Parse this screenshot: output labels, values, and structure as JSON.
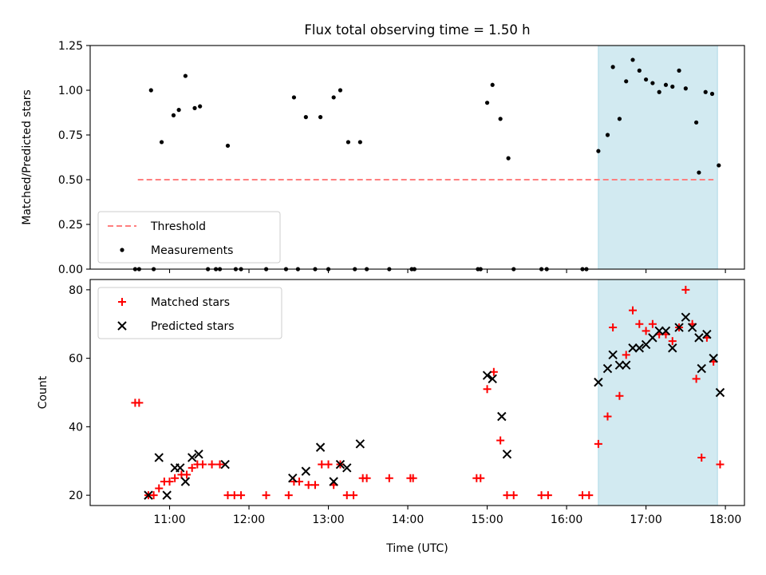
{
  "chart_data": {
    "title": "Flux total observing time = 1.50 h",
    "xlabel": "Time (UTC)",
    "x_ticks": [
      "11:00",
      "12:00",
      "13:00",
      "14:00",
      "15:00",
      "16:00",
      "17:00",
      "18:00"
    ],
    "highlight_span": [
      "16:24",
      "17:54"
    ],
    "colors": {
      "threshold": "#ff7f7f",
      "matched": "#ff0000",
      "predicted": "#000000",
      "measurement": "#000000",
      "span": "#add8e6"
    },
    "panels": [
      {
        "type": "scatter",
        "ylabel": "Matched/Predicted stars",
        "ylim": [
          0,
          1.25
        ],
        "y_ticks": [
          "0.00",
          "0.25",
          "0.50",
          "0.75",
          "1.00",
          "1.25"
        ],
        "legend_position": "lower-left",
        "threshold": {
          "name": "Threshold",
          "value": 0.5,
          "x_range": [
            "10:36",
            "17:51"
          ]
        },
        "series": [
          {
            "name": "Measurements",
            "points": [
              [
                "10:34",
                0
              ],
              [
                "10:37",
                0
              ],
              [
                "10:46",
                1.0
              ],
              [
                "10:48",
                0
              ],
              [
                "10:54",
                0.71
              ],
              [
                "11:03",
                0.86
              ],
              [
                "11:07",
                0.89
              ],
              [
                "11:12",
                1.08
              ],
              [
                "11:19",
                0.9
              ],
              [
                "11:23",
                0.91
              ],
              [
                "11:29",
                0
              ],
              [
                "11:35",
                0
              ],
              [
                "11:38",
                0
              ],
              [
                "11:44",
                0.69
              ],
              [
                "11:50",
                0
              ],
              [
                "11:54",
                0
              ],
              [
                "12:13",
                0
              ],
              [
                "12:28",
                0
              ],
              [
                "12:34",
                0.96
              ],
              [
                "12:37",
                0
              ],
              [
                "12:43",
                0.85
              ],
              [
                "12:50",
                0
              ],
              [
                "12:54",
                0.85
              ],
              [
                "13:00",
                0
              ],
              [
                "13:04",
                0.96
              ],
              [
                "13:09",
                1.0
              ],
              [
                "13:15",
                0.71
              ],
              [
                "13:20",
                0
              ],
              [
                "13:24",
                0.71
              ],
              [
                "13:29",
                0
              ],
              [
                "13:46",
                0
              ],
              [
                "14:03",
                0
              ],
              [
                "14:05",
                0
              ],
              [
                "14:53",
                0
              ],
              [
                "14:55",
                0
              ],
              [
                "15:00",
                0.93
              ],
              [
                "15:04",
                1.03
              ],
              [
                "15:10",
                0.84
              ],
              [
                "15:16",
                0.62
              ],
              [
                "15:20",
                0
              ],
              [
                "15:41",
                0
              ],
              [
                "15:45",
                0
              ],
              [
                "16:12",
                0
              ],
              [
                "16:15",
                0
              ],
              [
                "16:24",
                0.66
              ],
              [
                "16:31",
                0.75
              ],
              [
                "16:35",
                1.13
              ],
              [
                "16:40",
                0.84
              ],
              [
                "16:45",
                1.05
              ],
              [
                "16:50",
                1.17
              ],
              [
                "16:55",
                1.11
              ],
              [
                "17:00",
                1.06
              ],
              [
                "17:05",
                1.04
              ],
              [
                "17:10",
                0.99
              ],
              [
                "17:15",
                1.03
              ],
              [
                "17:20",
                1.02
              ],
              [
                "17:25",
                1.11
              ],
              [
                "17:30",
                1.01
              ],
              [
                "17:38",
                0.82
              ],
              [
                "17:40",
                0.54
              ],
              [
                "17:45",
                0.99
              ],
              [
                "17:50",
                0.98
              ],
              [
                "17:55",
                0.58
              ]
            ]
          }
        ]
      },
      {
        "type": "scatter",
        "ylabel": "Count",
        "ylim": [
          17,
          83
        ],
        "y_ticks": [
          "20",
          "40",
          "60",
          "80"
        ],
        "legend_position": "upper-left",
        "series": [
          {
            "name": "Matched stars",
            "marker": "plus",
            "points": [
              [
                "10:34",
                47
              ],
              [
                "10:37",
                47
              ],
              [
                "10:44",
                20
              ],
              [
                "10:48",
                20
              ],
              [
                "10:52",
                22
              ],
              [
                "10:56",
                24
              ],
              [
                "11:00",
                24
              ],
              [
                "11:04",
                25
              ],
              [
                "11:09",
                26
              ],
              [
                "11:13",
                26
              ],
              [
                "11:17",
                28
              ],
              [
                "11:21",
                29
              ],
              [
                "11:25",
                29
              ],
              [
                "11:32",
                29
              ],
              [
                "11:38",
                29
              ],
              [
                "11:44",
                20
              ],
              [
                "11:49",
                20
              ],
              [
                "11:54",
                20
              ],
              [
                "12:13",
                20
              ],
              [
                "12:30",
                20
              ],
              [
                "12:34",
                24
              ],
              [
                "12:38",
                24
              ],
              [
                "12:45",
                23
              ],
              [
                "12:50",
                23
              ],
              [
                "12:55",
                29
              ],
              [
                "13:00",
                29
              ],
              [
                "13:04",
                23
              ],
              [
                "13:09",
                29
              ],
              [
                "13:14",
                20
              ],
              [
                "13:19",
                20
              ],
              [
                "13:26",
                25
              ],
              [
                "13:29",
                25
              ],
              [
                "13:46",
                25
              ],
              [
                "14:02",
                25
              ],
              [
                "14:04",
                25
              ],
              [
                "14:52",
                25
              ],
              [
                "14:55",
                25
              ],
              [
                "15:00",
                51
              ],
              [
                "15:05",
                56
              ],
              [
                "15:10",
                36
              ],
              [
                "15:15",
                20
              ],
              [
                "15:20",
                20
              ],
              [
                "15:41",
                20
              ],
              [
                "15:46",
                20
              ],
              [
                "16:12",
                20
              ],
              [
                "16:17",
                20
              ],
              [
                "16:24",
                35
              ],
              [
                "16:31",
                43
              ],
              [
                "16:35",
                69
              ],
              [
                "16:40",
                49
              ],
              [
                "16:45",
                61
              ],
              [
                "16:50",
                74
              ],
              [
                "16:55",
                70
              ],
              [
                "17:00",
                68
              ],
              [
                "17:05",
                70
              ],
              [
                "17:10",
                67
              ],
              [
                "17:15",
                67
              ],
              [
                "17:20",
                65
              ],
              [
                "17:25",
                69
              ],
              [
                "17:30",
                80
              ],
              [
                "17:35",
                70
              ],
              [
                "17:38",
                54
              ],
              [
                "17:42",
                31
              ],
              [
                "17:46",
                66
              ],
              [
                "17:51",
                59
              ],
              [
                "17:56",
                29
              ]
            ]
          },
          {
            "name": "Predicted stars",
            "marker": "x",
            "points": [
              [
                "10:44",
                20
              ],
              [
                "10:52",
                31
              ],
              [
                "10:58",
                20
              ],
              [
                "11:04",
                28
              ],
              [
                "11:08",
                28
              ],
              [
                "11:12",
                24
              ],
              [
                "11:17",
                31
              ],
              [
                "11:22",
                32
              ],
              [
                "11:42",
                29
              ],
              [
                "12:33",
                25
              ],
              [
                "12:43",
                27
              ],
              [
                "12:54",
                34
              ],
              [
                "13:04",
                24
              ],
              [
                "13:09",
                29
              ],
              [
                "13:14",
                28
              ],
              [
                "13:24",
                35
              ],
              [
                "15:00",
                55
              ],
              [
                "15:04",
                54
              ],
              [
                "15:11",
                43
              ],
              [
                "15:15",
                32
              ],
              [
                "16:24",
                53
              ],
              [
                "16:31",
                57
              ],
              [
                "16:35",
                61
              ],
              [
                "16:40",
                58
              ],
              [
                "16:45",
                58
              ],
              [
                "16:50",
                63
              ],
              [
                "16:55",
                63
              ],
              [
                "17:00",
                64
              ],
              [
                "17:05",
                66
              ],
              [
                "17:10",
                68
              ],
              [
                "17:15",
                68
              ],
              [
                "17:20",
                63
              ],
              [
                "17:25",
                69
              ],
              [
                "17:30",
                72
              ],
              [
                "17:35",
                69
              ],
              [
                "17:40",
                66
              ],
              [
                "17:42",
                57
              ],
              [
                "17:46",
                67
              ],
              [
                "17:51",
                60
              ],
              [
                "17:56",
                50
              ]
            ]
          }
        ]
      }
    ]
  }
}
